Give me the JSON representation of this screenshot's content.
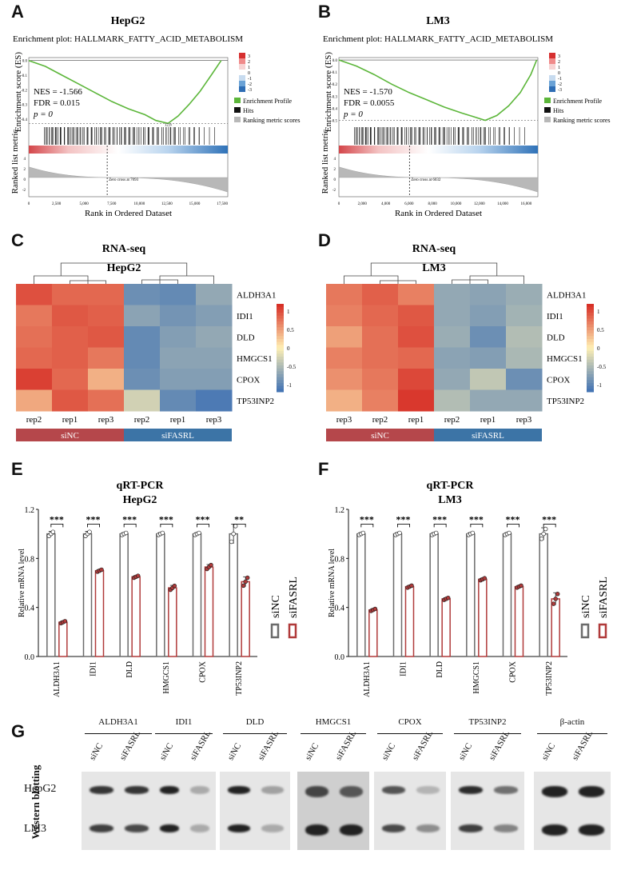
{
  "panels": {
    "A": "A",
    "B": "B",
    "C": "C",
    "D": "D",
    "E": "E",
    "F": "F",
    "G": "G"
  },
  "chart_data": [
    {
      "id": "gsea-hepg2",
      "type": "line",
      "cell_line": "HepG2",
      "title": "Enrichment plot: HALLMARK_FATTY_ACID_METABOLISM",
      "ylabel_top": "Enrichment score (ES)",
      "ylabel_bottom": "Ranked list metric",
      "xlabel": "Rank in Ordered Dataset",
      "nes_text": "NES = -1.566",
      "fdr_text": "FDR = 0.015",
      "p_text": "p = 0",
      "x_ticks": [
        "0",
        "2,500",
        "5,000",
        "7,500",
        "10,000",
        "12,500",
        "15,000",
        "17,500"
      ],
      "xlim": [
        0,
        18000
      ],
      "es_ticks": [
        "0.0",
        "-0.1",
        "-0.2",
        "-0.3",
        "-0.4"
      ],
      "eslim": [
        -0.45,
        0.02
      ],
      "metric_ticks": [
        "4",
        "2",
        "0",
        "-2"
      ],
      "zero_cross_text": "Zero cross at 7093",
      "zero_cross": 7093,
      "min_es": -0.43,
      "min_es_label": "12,6",
      "min_rank": 12600,
      "es_curve": [
        [
          0,
          0.0
        ],
        [
          1500,
          -0.04
        ],
        [
          3000,
          -0.1
        ],
        [
          4500,
          -0.16
        ],
        [
          6000,
          -0.22
        ],
        [
          7500,
          -0.28
        ],
        [
          9000,
          -0.33
        ],
        [
          10500,
          -0.37
        ],
        [
          11500,
          -0.41
        ],
        [
          12600,
          -0.43
        ],
        [
          13500,
          -0.38
        ],
        [
          14500,
          -0.3
        ],
        [
          15500,
          -0.21
        ],
        [
          16500,
          -0.1
        ],
        [
          17400,
          0.0
        ]
      ],
      "legend": [
        "Enrichment Profile",
        "Hits",
        "Ranking metric scores"
      ],
      "colorbar_ticks": [
        "3",
        "2",
        "1",
        "0",
        "-1",
        "-2",
        "-3"
      ]
    },
    {
      "id": "gsea-lm3",
      "type": "line",
      "cell_line": "LM3",
      "title": "Enrichment plot: HALLMARK_FATTY_ACID_METABOLISM",
      "ylabel_top": "Enrichment score (ES)",
      "ylabel_bottom": "Ranked list metric",
      "xlabel": "Rank in Ordered Dataset",
      "nes_text": "NES = -1.570",
      "fdr_text": "FDR = 0.0055",
      "p_text": "p = 0",
      "x_ticks": [
        "0",
        "2,000",
        "4,000",
        "6,000",
        "8,000",
        "10,000",
        "12,000",
        "14,000",
        "16,000"
      ],
      "xlim": [
        0,
        17000
      ],
      "es_ticks": [
        "0.0",
        "-0.1",
        "-0.2",
        "-0.3",
        "-0.4",
        "-0.5"
      ],
      "eslim": [
        -0.55,
        0.02
      ],
      "metric_ticks": [
        "4",
        "2",
        "0",
        "-2"
      ],
      "zero_cross_text": "Zero cross at 6032",
      "zero_cross": 6032,
      "min_es": -0.5,
      "min_rank": 12500,
      "es_curve": [
        [
          0,
          0.0
        ],
        [
          1500,
          -0.05
        ],
        [
          3000,
          -0.12
        ],
        [
          4500,
          -0.2
        ],
        [
          6000,
          -0.27
        ],
        [
          7500,
          -0.33
        ],
        [
          9000,
          -0.39
        ],
        [
          10500,
          -0.44
        ],
        [
          11500,
          -0.47
        ],
        [
          12500,
          -0.5
        ],
        [
          13500,
          -0.46
        ],
        [
          14500,
          -0.38
        ],
        [
          15500,
          -0.27
        ],
        [
          16400,
          -0.12
        ],
        [
          16900,
          0.0
        ]
      ],
      "legend": [
        "Enrichment Profile",
        "Hits",
        "Ranking metric scores"
      ],
      "colorbar_ticks": [
        "3",
        "2",
        "1",
        "0",
        "-1",
        "-2",
        "-3"
      ]
    },
    {
      "id": "heatmap-hepg2",
      "type": "heatmap",
      "title": "RNA-seq",
      "subtitle": "HepG2",
      "genes": [
        "ALDH3A1",
        "IDI1",
        "DLD",
        "HMGCS1",
        "CPOX",
        "TP53INP2"
      ],
      "columns": [
        "rep2",
        "rep1",
        "rep3",
        "rep2",
        "rep1",
        "rep3"
      ],
      "groups": [
        {
          "label": "siNC",
          "span": 3,
          "color": "#b5474b"
        },
        {
          "label": "siFASRL",
          "span": 3,
          "color": "#3c74a6"
        }
      ],
      "colorbar_ticks": [
        "1",
        "0.5",
        "0",
        "-0.5",
        "-1"
      ],
      "values": [
        [
          1.0,
          0.85,
          0.85,
          -0.95,
          -1.0,
          -0.7
        ],
        [
          0.75,
          0.95,
          0.9,
          -0.75,
          -0.9,
          -0.8
        ],
        [
          0.8,
          0.9,
          0.95,
          -1.0,
          -0.8,
          -0.7
        ],
        [
          0.85,
          0.9,
          0.75,
          -1.0,
          -0.75,
          -0.75
        ],
        [
          1.1,
          0.85,
          0.4,
          -0.95,
          -0.8,
          -0.8
        ],
        [
          0.45,
          0.95,
          0.8,
          -0.3,
          -1.0,
          -1.15
        ]
      ]
    },
    {
      "id": "heatmap-lm3",
      "type": "heatmap",
      "title": "RNA-seq",
      "subtitle": "LM3",
      "genes": [
        "ALDH3A1",
        "IDI1",
        "DLD",
        "HMGCS1",
        "CPOX",
        "TP53INP2"
      ],
      "columns": [
        "rep3",
        "rep2",
        "rep1",
        "rep2",
        "rep1",
        "rep3"
      ],
      "groups": [
        {
          "label": "siNC",
          "span": 3,
          "color": "#b5474b"
        },
        {
          "label": "siFASRL",
          "span": 3,
          "color": "#3c74a6"
        }
      ],
      "colorbar_ticks": [
        "1",
        "0.5",
        "0",
        "-0.5",
        "-1"
      ],
      "values": [
        [
          0.75,
          0.9,
          0.7,
          -0.7,
          -0.75,
          -0.65
        ],
        [
          0.7,
          0.85,
          0.95,
          -0.7,
          -0.8,
          -0.6
        ],
        [
          0.5,
          0.8,
          1.0,
          -0.65,
          -0.95,
          -0.5
        ],
        [
          0.7,
          0.8,
          0.85,
          -0.75,
          -0.8,
          -0.55
        ],
        [
          0.6,
          0.75,
          1.05,
          -0.7,
          -0.4,
          -0.95
        ],
        [
          0.4,
          0.7,
          1.15,
          -0.5,
          -0.7,
          -0.7
        ]
      ]
    },
    {
      "id": "qpcr-hepg2",
      "type": "bar",
      "title": "qRT-PCR",
      "subtitle": "HepG2",
      "ylabel": "Relative mRNA level",
      "ylim": [
        0,
        1.2
      ],
      "yticks": [
        "0.0",
        "0.4",
        "0.8",
        "1.2"
      ],
      "categories": [
        "ALDH3A1",
        "IDI1",
        "DLD",
        "HMGCS1",
        "CPOX",
        "TP53INP2"
      ],
      "series": [
        {
          "name": "siNC",
          "color": "#6b6b6b",
          "values": [
            1.0,
            1.0,
            1.0,
            1.0,
            1.0,
            1.0
          ],
          "err": [
            0.02,
            0.02,
            0.01,
            0.01,
            0.01,
            0.08
          ]
        },
        {
          "name": "siFASRL",
          "color": "#b03a3a",
          "values": [
            0.28,
            0.7,
            0.65,
            0.56,
            0.73,
            0.61
          ],
          "err": [
            0.01,
            0.01,
            0.01,
            0.02,
            0.02,
            0.04
          ]
        }
      ],
      "significance": [
        "***",
        "***",
        "***",
        "***",
        "***",
        "**"
      ]
    },
    {
      "id": "qpcr-lm3",
      "type": "bar",
      "title": "qRT-PCR",
      "subtitle": "LM3",
      "ylabel": "Relative mRNA level",
      "ylim": [
        0,
        1.2
      ],
      "yticks": [
        "0.0",
        "0.4",
        "0.8",
        "1.2"
      ],
      "categories": [
        "ALDH3A1",
        "IDI1",
        "DLD",
        "HMGCS1",
        "CPOX",
        "TP53INP2"
      ],
      "series": [
        {
          "name": "siNC",
          "color": "#6b6b6b",
          "values": [
            1.0,
            1.0,
            1.0,
            1.0,
            1.0,
            1.0
          ],
          "err": [
            0.01,
            0.01,
            0.01,
            0.01,
            0.01,
            0.05
          ]
        },
        {
          "name": "siFASRL",
          "color": "#b03a3a",
          "values": [
            0.38,
            0.57,
            0.47,
            0.63,
            0.57,
            0.47
          ],
          "err": [
            0.01,
            0.01,
            0.01,
            0.01,
            0.01,
            0.05
          ]
        }
      ],
      "significance": [
        "***",
        "***",
        "***",
        "***",
        "***",
        "***"
      ]
    }
  ],
  "western": {
    "side_label": "Western blotting",
    "proteins": [
      "ALDH3A1",
      "IDI1",
      "DLD",
      "HMGCS1",
      "CPOX",
      "TP53INP2",
      "β-actin"
    ],
    "lanes": [
      "siNC",
      "siFASRL"
    ],
    "rows": [
      "HepG2",
      "LM3"
    ],
    "intensity": {
      "HepG2": [
        [
          0.9,
          0.9
        ],
        [
          1.0,
          0.3
        ],
        [
          1.0,
          0.35
        ],
        [
          0.8,
          0.7
        ],
        [
          0.75,
          0.25
        ],
        [
          0.95,
          0.6
        ],
        [
          1.0,
          1.0
        ]
      ],
      "LM3": [
        [
          0.85,
          0.8
        ],
        [
          1.0,
          0.3
        ],
        [
          1.0,
          0.3
        ],
        [
          1.0,
          1.0
        ],
        [
          0.8,
          0.45
        ],
        [
          0.85,
          0.5
        ],
        [
          1.0,
          1.0
        ]
      ]
    }
  }
}
